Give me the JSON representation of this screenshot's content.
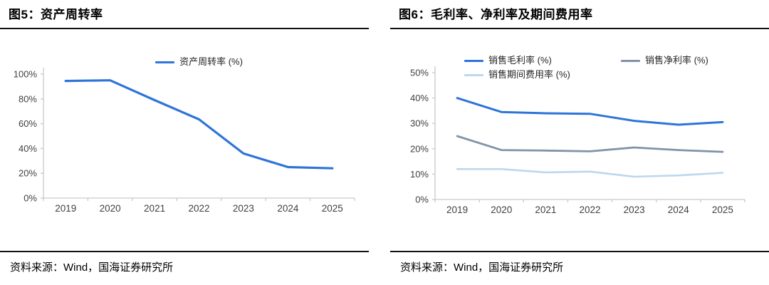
{
  "figures": [
    {
      "title": "图5：资产周转率",
      "source": "资料来源：Wind，国海证券研究所"
    },
    {
      "title": "图6：毛利率、净利率及期间费用率",
      "source": "资料来源：Wind，国海证券研究所"
    }
  ],
  "chart_data": [
    {
      "type": "line",
      "title": "资产周转率",
      "categories": [
        "2019",
        "2020",
        "2021",
        "2022",
        "2023",
        "2024",
        "2025"
      ],
      "xlabel": "",
      "ylabel": "",
      "ylim": [
        0,
        100
      ],
      "ytick_labels": [
        "0%",
        "20%",
        "40%",
        "60%",
        "80%",
        "100%"
      ],
      "grid": false,
      "legend_position": "top-center",
      "series": [
        {
          "name": "资产周转率 (%)",
          "color": "#2E74D9",
          "values": [
            94.5,
            95,
            79,
            63.5,
            36,
            25,
            24
          ]
        }
      ]
    },
    {
      "type": "line",
      "title": "毛利率、净利率及期间费用率",
      "categories": [
        "2019",
        "2020",
        "2021",
        "2022",
        "2023",
        "2024",
        "2025"
      ],
      "xlabel": "",
      "ylabel": "",
      "ylim": [
        0,
        50
      ],
      "ytick_labels": [
        "0%",
        "10%",
        "20%",
        "30%",
        "40%",
        "50%"
      ],
      "grid": false,
      "legend_position": "top",
      "series": [
        {
          "name": "销售毛利率 (%)",
          "color": "#2E74D9",
          "values": [
            40,
            34.5,
            34,
            33.8,
            31,
            29.5,
            30.5
          ]
        },
        {
          "name": "销售净利率 (%)",
          "color": "#8193A9",
          "values": [
            25,
            19.5,
            19.3,
            19,
            20.5,
            19.5,
            18.8
          ]
        },
        {
          "name": "销售期间费用率 (%)",
          "color": "#BDD7EE",
          "values": [
            12,
            12,
            10.7,
            11,
            9,
            9.5,
            10.5
          ]
        }
      ]
    }
  ],
  "style_colors": {
    "axis": "#C9C9C9",
    "tick_label": "#404040",
    "accent_blue": "#2E74D9",
    "gray_line": "#8193A9",
    "light_blue_line": "#BDD7EE"
  }
}
